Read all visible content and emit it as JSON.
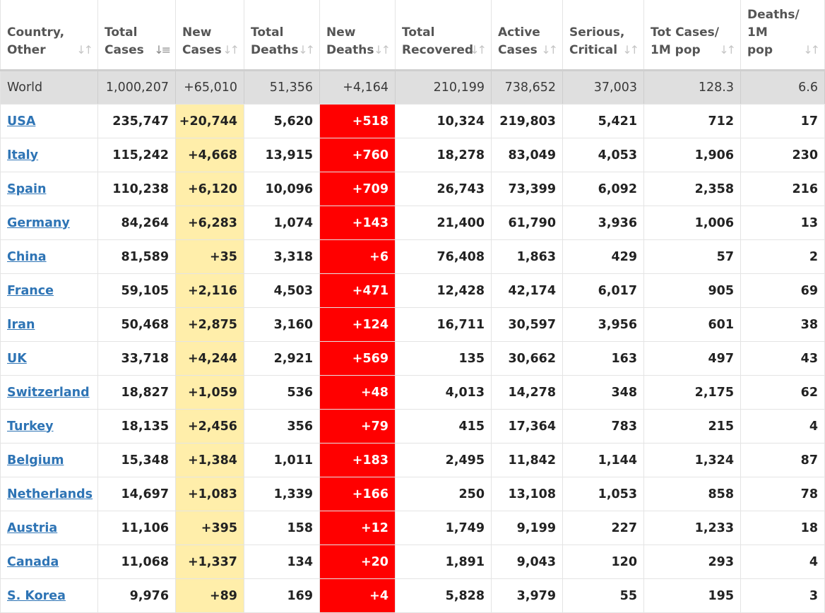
{
  "columns": [
    {
      "label": "Country,\nOther",
      "sort": "both"
    },
    {
      "label": "Total\nCases",
      "sort": "desc"
    },
    {
      "label": "New\nCases",
      "sort": "both"
    },
    {
      "label": "Total\nDeaths",
      "sort": "both"
    },
    {
      "label": "New\nDeaths",
      "sort": "both"
    },
    {
      "label": "Total\nRecovered",
      "sort": "both"
    },
    {
      "label": "Active\nCases",
      "sort": "both"
    },
    {
      "label": "Serious,\nCritical",
      "sort": "both"
    },
    {
      "label": "Tot Cases/\n1M pop",
      "sort": "both"
    },
    {
      "label": "Deaths/\n1M\npop",
      "sort": "both"
    }
  ],
  "world": [
    "World",
    "1,000,207",
    "+65,010",
    "51,356",
    "+4,164",
    "210,199",
    "738,652",
    "37,003",
    "128.3",
    "6.6"
  ],
  "rows": [
    [
      "USA",
      "235,747",
      "+20,744",
      "5,620",
      "+518",
      "10,324",
      "219,803",
      "5,421",
      "712",
      "17"
    ],
    [
      "Italy",
      "115,242",
      "+4,668",
      "13,915",
      "+760",
      "18,278",
      "83,049",
      "4,053",
      "1,906",
      "230"
    ],
    [
      "Spain",
      "110,238",
      "+6,120",
      "10,096",
      "+709",
      "26,743",
      "73,399",
      "6,092",
      "2,358",
      "216"
    ],
    [
      "Germany",
      "84,264",
      "+6,283",
      "1,074",
      "+143",
      "21,400",
      "61,790",
      "3,936",
      "1,006",
      "13"
    ],
    [
      "China",
      "81,589",
      "+35",
      "3,318",
      "+6",
      "76,408",
      "1,863",
      "429",
      "57",
      "2"
    ],
    [
      "France",
      "59,105",
      "+2,116",
      "4,503",
      "+471",
      "12,428",
      "42,174",
      "6,017",
      "905",
      "69"
    ],
    [
      "Iran",
      "50,468",
      "+2,875",
      "3,160",
      "+124",
      "16,711",
      "30,597",
      "3,956",
      "601",
      "38"
    ],
    [
      "UK",
      "33,718",
      "+4,244",
      "2,921",
      "+569",
      "135",
      "30,662",
      "163",
      "497",
      "43"
    ],
    [
      "Switzerland",
      "18,827",
      "+1,059",
      "536",
      "+48",
      "4,013",
      "14,278",
      "348",
      "2,175",
      "62"
    ],
    [
      "Turkey",
      "18,135",
      "+2,456",
      "356",
      "+79",
      "415",
      "17,364",
      "783",
      "215",
      "4"
    ],
    [
      "Belgium",
      "15,348",
      "+1,384",
      "1,011",
      "+183",
      "2,495",
      "11,842",
      "1,144",
      "1,324",
      "87"
    ],
    [
      "Netherlands",
      "14,697",
      "+1,083",
      "1,339",
      "+166",
      "250",
      "13,108",
      "1,053",
      "858",
      "78"
    ],
    [
      "Austria",
      "11,106",
      "+395",
      "158",
      "+12",
      "1,749",
      "9,199",
      "227",
      "1,233",
      "18"
    ],
    [
      "Canada",
      "11,068",
      "+1,337",
      "134",
      "+20",
      "1,891",
      "9,043",
      "120",
      "293",
      "4"
    ],
    [
      "S. Korea",
      "9,976",
      "+89",
      "169",
      "+4",
      "5,828",
      "3,979",
      "55",
      "195",
      "3"
    ]
  ],
  "colors": {
    "link": "#2e74b5",
    "new_cases_bg": "#ffeeaa",
    "new_deaths_bg": "#ff0000",
    "world_row_bg": "#dfdfdf"
  }
}
